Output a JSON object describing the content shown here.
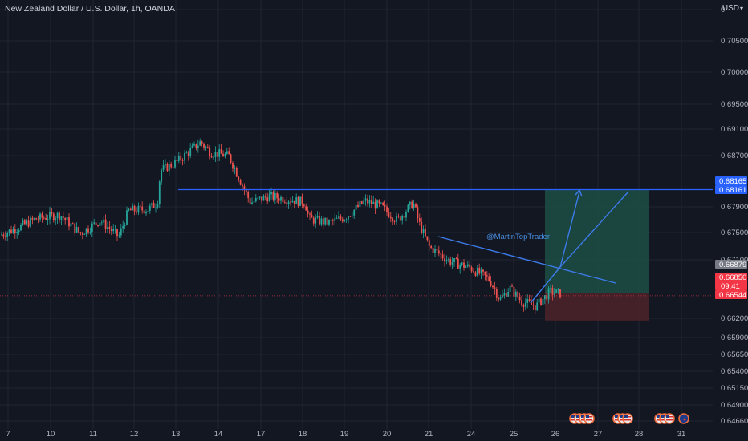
{
  "header": {
    "title": "New Zealand Dollar / U.S. Dollar, 1h, OANDA",
    "currency": "USD",
    "currency_chevron": "▾"
  },
  "colors": {
    "background": "#131722",
    "grid": "#1f2433",
    "bull": "#26a69a",
    "bear": "#ef5350",
    "blue_line": "#2962ff",
    "draw_blue": "#3d7bea",
    "target_zone": "#1d4d44",
    "stop_zone": "#4a2229",
    "axis_text": "#b2b5be"
  },
  "chart_data": {
    "type": "candlestick",
    "symbol": "NZDUSD",
    "interval": "1h",
    "y_ticks": [
      "0.70500",
      "0.70000",
      "0.69500",
      "0.69100",
      "0.68700",
      "0.67900",
      "0.67500",
      "0.67100",
      "0.66200",
      "0.65900",
      "0.65650",
      "0.65400",
      "0.65150",
      "0.64900",
      "0.64660"
    ],
    "top_tick_partial": "0",
    "x_ticks": [
      "7",
      "10",
      "11",
      "12",
      "13",
      "14",
      "17",
      "18",
      "19",
      "20",
      "21",
      "24",
      "25",
      "26",
      "27",
      "28",
      "31"
    ],
    "ylim": [
      0.6445,
      0.7085
    ],
    "price_tags": [
      {
        "label": "0.68165",
        "value": 0.68165,
        "color": "#2962ff"
      },
      {
        "label": "0.68161",
        "value": 0.68161,
        "color": "#2962ff"
      },
      {
        "label": "0.66879",
        "value": 0.66879,
        "color": "#787b86"
      },
      {
        "label": "0.66850",
        "sub": "09:41",
        "value": 0.6685,
        "color": "#f23645"
      },
      {
        "label": "0.66544",
        "value": 0.66544,
        "color": "#f23645"
      }
    ],
    "horizontal_level": 0.68161,
    "last_price": 0.6685,
    "annotation": "@MartinTopTrader",
    "position": {
      "entry": 0.66879,
      "target": 0.68161,
      "stop": 0.66544
    }
  }
}
